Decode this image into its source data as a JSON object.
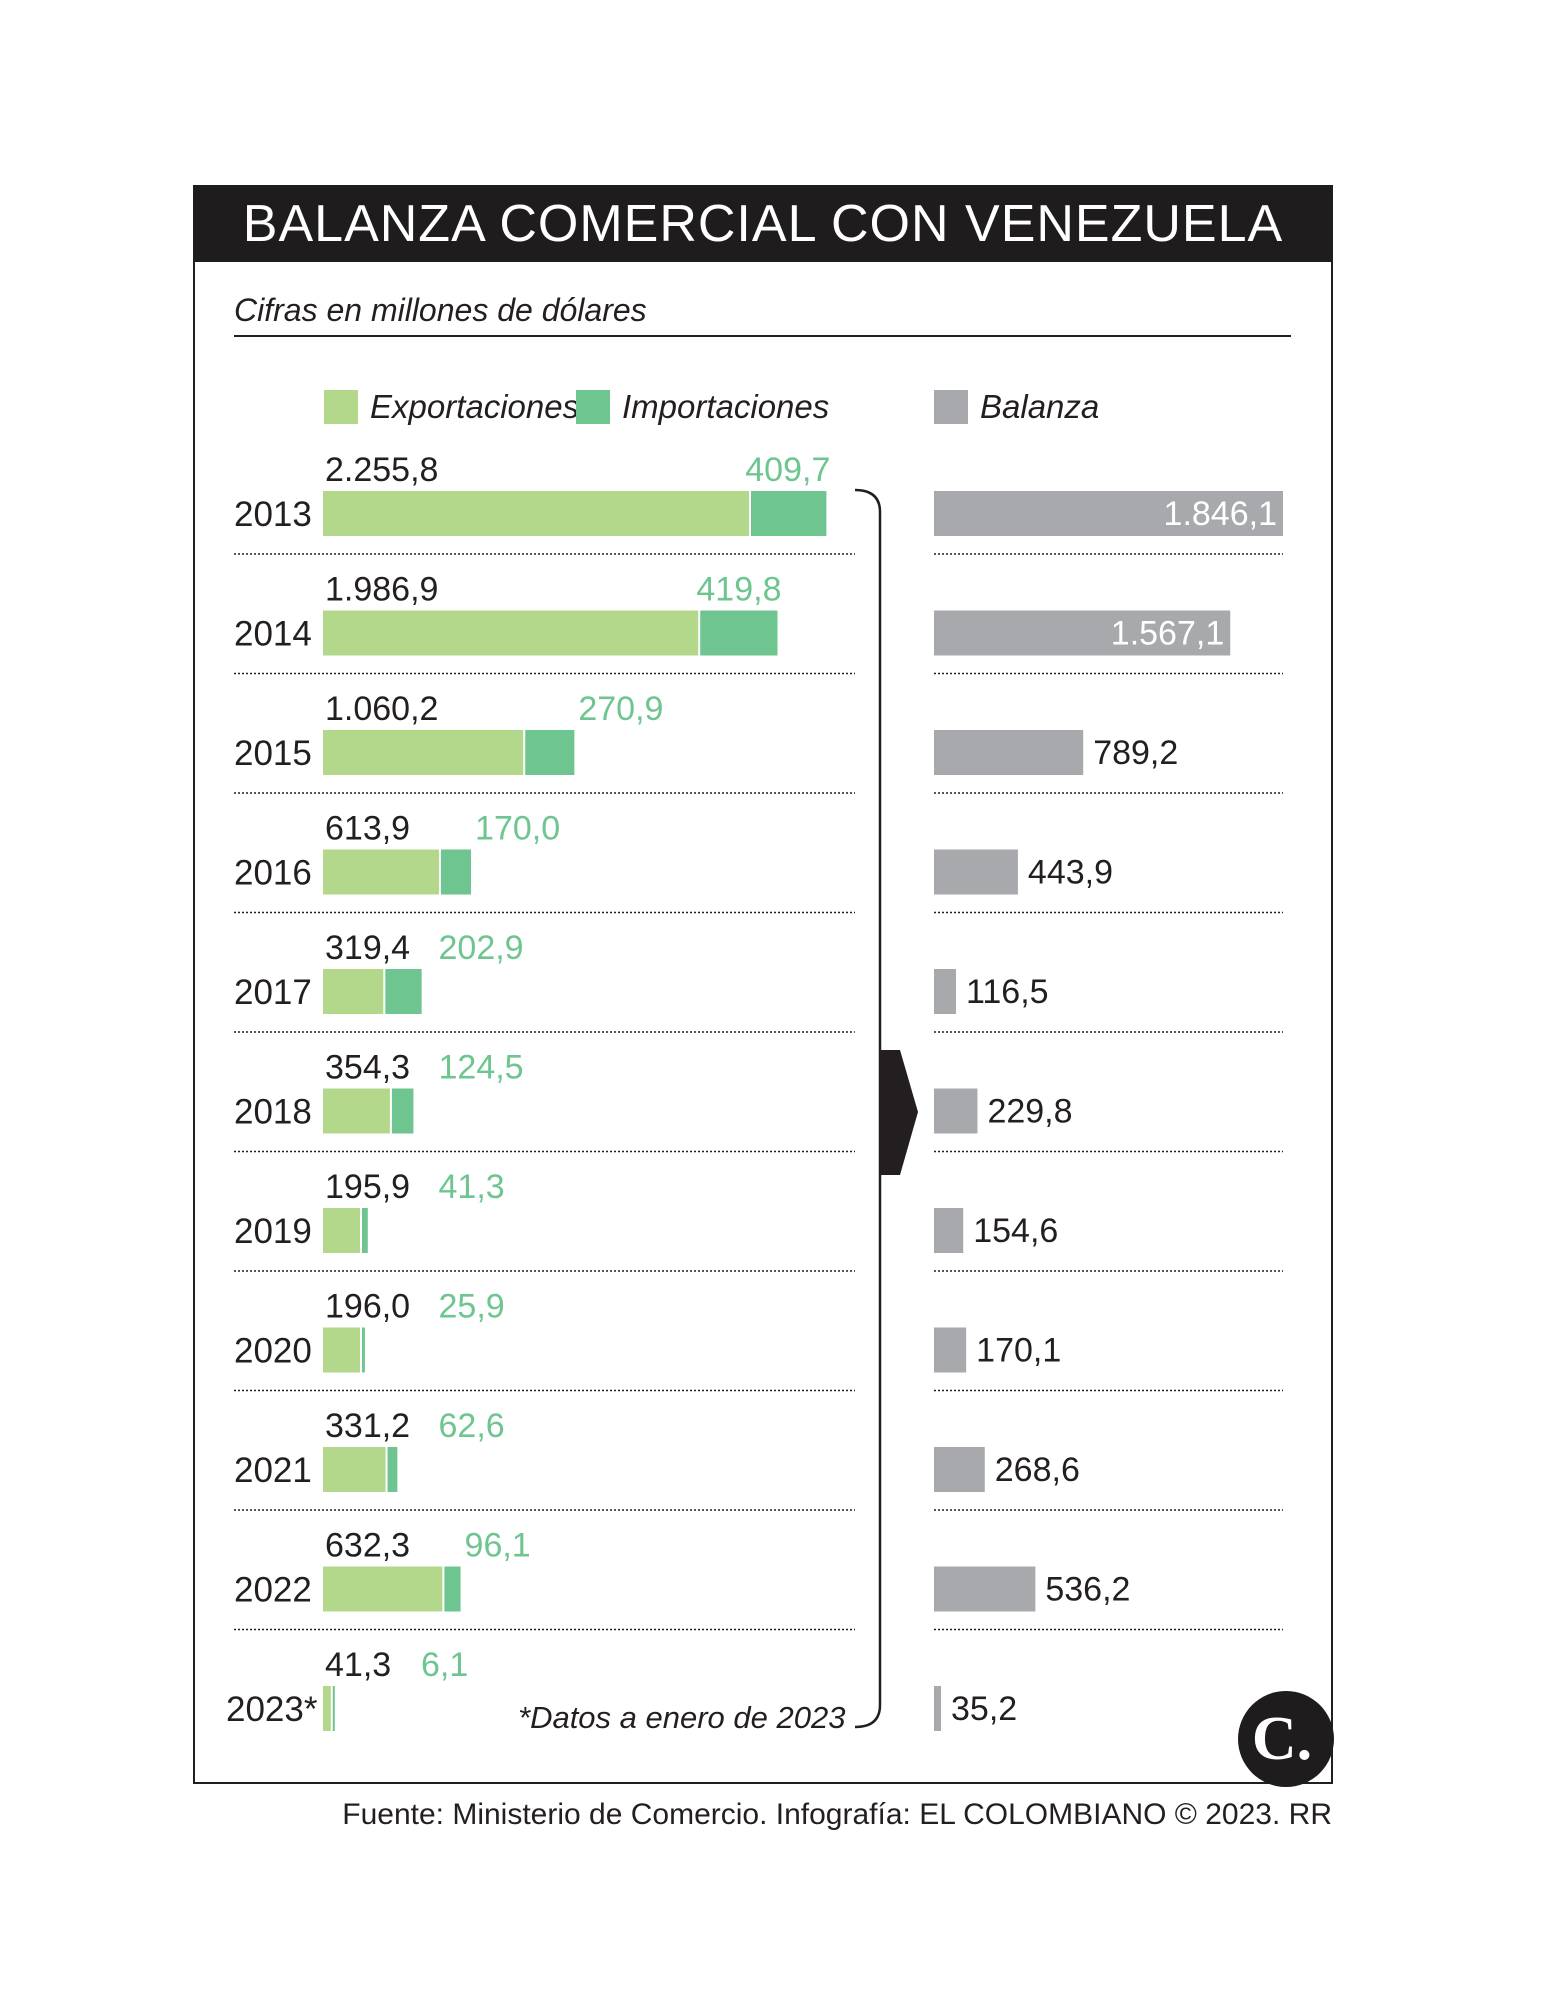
{
  "header": {
    "title": "BALANZA COMERCIAL CON VENEZUELA",
    "subtitle": "Cifras en millones de dólares"
  },
  "legend": {
    "exports": "Exportaciones",
    "imports": "Importaciones",
    "balance": "Balanza"
  },
  "colors": {
    "exports": "#b3d88b",
    "imports": "#6ec590",
    "balance": "#a7a9ac",
    "import_label": "#6ec590",
    "header_bg": "#1f1c1d"
  },
  "note": "*Datos a enero de 2023",
  "source": "Fuente: Ministerio de Comercio. Infografía: EL COLOMBIANO © 2023. RR",
  "logo_text": "C.",
  "chart_data": {
    "type": "bar",
    "categories": [
      "2013",
      "2014",
      "2015",
      "2016",
      "2017",
      "2018",
      "2019",
      "2020",
      "2021",
      "2022",
      "2023*"
    ],
    "series": [
      {
        "name": "Exportaciones",
        "values": [
          2255.8,
          1986.9,
          1060.2,
          613.9,
          319.4,
          354.3,
          195.9,
          196.0,
          331.2,
          632.3,
          41.3
        ],
        "labels": [
          "2.255,8",
          "1.986,9",
          "1.060,2",
          "613,9",
          "319,4",
          "354,3",
          "195,9",
          "196,0",
          "331,2",
          "632,3",
          "41,3"
        ]
      },
      {
        "name": "Importaciones",
        "values": [
          409.7,
          419.8,
          270.9,
          170.0,
          202.9,
          124.5,
          41.3,
          25.9,
          62.6,
          96.1,
          6.1
        ],
        "labels": [
          "409,7",
          "419,8",
          "270,9",
          "170,0",
          "202,9",
          "124,5",
          "41,3",
          "25,9",
          "62,6",
          "96,1",
          "6,1"
        ]
      },
      {
        "name": "Balanza",
        "values": [
          1846.1,
          1567.1,
          789.2,
          443.9,
          116.5,
          229.8,
          154.6,
          170.1,
          268.6,
          536.2,
          35.2
        ],
        "labels": [
          "1.846,1",
          "1.567,1",
          "789,2",
          "443,9",
          "116,5",
          "229,8",
          "154,6",
          "170,1",
          "268,6",
          "536,2",
          "35,2"
        ]
      }
    ]
  }
}
